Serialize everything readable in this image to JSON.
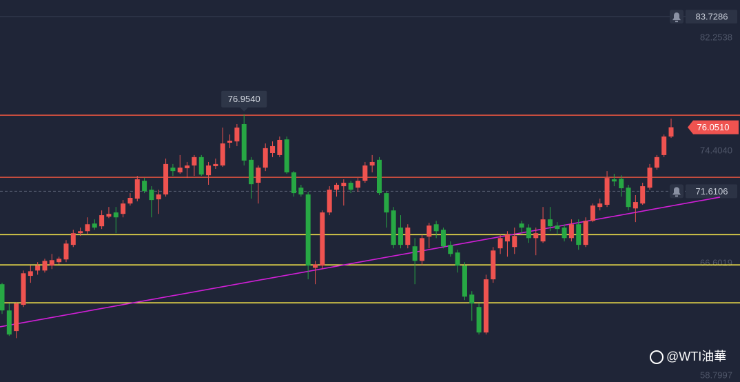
{
  "chart_data": {
    "type": "candlestick",
    "ylim": [
      58.375,
      84.882
    ],
    "yticks": [
      82.2538,
      {
        "value": 74.404,
        "label": "74.4040"
      },
      66.6019,
      58.7997
    ],
    "up_color": "#ef5350",
    "down_color": "#27a844",
    "series": {
      "open": [
        65.16,
        63.34,
        61.91,
        63.73,
        65.74,
        66.11,
        66.11,
        66.45,
        66.69,
        66.88,
        67.89,
        68.7,
        68.84,
        69.37,
        69.18,
        69.85,
        70.14,
        70.04,
        70.76,
        71.1,
        72.34,
        71.72,
        71.05,
        71.39,
        73.25,
        72.92,
        73.21,
        73.4,
        73.98,
        72.72,
        73.35,
        73.4,
        74.98,
        75.07,
        76.27,
        73.79,
        72.2,
        73.25,
        74.26,
        74.12,
        75.21,
        72.92,
        71.86,
        71.39,
        66.3,
        66.45,
        70.14,
        71.72,
        71.96,
        72.2,
        71.86,
        72.34,
        73.4,
        73.79,
        71.48,
        70.28,
        69.09,
        67.89,
        67.79,
        66.78,
        68.46,
        69.32,
        68.94,
        67.89,
        67.36,
        66.45,
        64.44,
        63.58,
        61.81,
        65.5,
        67.65,
        68.13,
        67.74,
        69.37,
        69.09,
        68.36,
        68.13,
        69.66,
        69.23,
        69.09,
        68.36,
        69.32,
        67.89,
        69.56,
        70.52,
        70.67,
        72.44,
        72.48,
        71.86,
        70.42,
        70.76,
        71.86,
        73.25,
        74.12,
        75.41
      ],
      "high": [
        65.26,
        63.82,
        63.92,
        66.11,
        66.45,
        66.69,
        66.93,
        67.26,
        67.07,
        68.22,
        68.94,
        69.09,
        69.8,
        69.66,
        70.28,
        70.52,
        70.52,
        71.0,
        71.48,
        72.68,
        72.53,
        71.96,
        71.72,
        73.88,
        73.5,
        74.12,
        73.64,
        74.12,
        74.12,
        73.64,
        73.88,
        76.03,
        75.55,
        76.27,
        76.954,
        73.98,
        73.4,
        74.93,
        75.07,
        75.41,
        75.41,
        73.01,
        72.06,
        71.58,
        66.78,
        70.28,
        71.96,
        72.2,
        72.44,
        72.34,
        72.53,
        73.64,
        74.12,
        73.98,
        71.58,
        70.52,
        69.95,
        69.32,
        68.36,
        68.6,
        69.42,
        69.56,
        69.09,
        68.13,
        67.55,
        66.69,
        64.68,
        63.82,
        65.82,
        67.74,
        68.6,
        68.84,
        69.09,
        69.56,
        69.32,
        69.09,
        70.52,
        70.52,
        69.47,
        69.32,
        69.66,
        69.66,
        69.8,
        70.76,
        71.1,
        73.01,
        72.82,
        72.72,
        72.06,
        71.34,
        72.2,
        73.5,
        74.12,
        75.55,
        76.65
      ],
      "low": [
        63.1,
        61.57,
        61.42,
        63.58,
        65.26,
        65.82,
        65.97,
        66.21,
        66.54,
        66.69,
        67.74,
        68.51,
        68.6,
        68.94,
        68.99,
        69.75,
        68.7,
        69.8,
        70.62,
        70.91,
        71.48,
        69.8,
        70.04,
        71.24,
        72.68,
        72.82,
        72.53,
        72.68,
        72.68,
        72.06,
        73.16,
        73.3,
        74.6,
        74.74,
        73.4,
        71.1,
        70.76,
        73.01,
        73.98,
        73.98,
        72.82,
        71.24,
        71.24,
        65.5,
        65.16,
        66.21,
        69.95,
        71.24,
        70.62,
        71.48,
        71.58,
        72.2,
        72.92,
        71.34,
        69.09,
        67.65,
        67.65,
        67.65,
        65.16,
        66.45,
        67.65,
        68.36,
        67.65,
        67.07,
        65.97,
        64.06,
        62.62,
        61.67,
        61.67,
        65.26,
        67.26,
        67.07,
        67.26,
        68.7,
        68.03,
        67.17,
        68.03,
        68.84,
        68.6,
        68.13,
        68.13,
        67.55,
        67.74,
        69.47,
        70.28,
        70.52,
        71.96,
        71.24,
        70.28,
        69.47,
        70.67,
        71.72,
        73.11,
        73.98,
        75.31
      ],
      "close": [
        63.34,
        61.67,
        63.82,
        65.92,
        66.06,
        66.45,
        66.78,
        66.83,
        66.93,
        67.98,
        68.7,
        68.84,
        69.32,
        69.09,
        69.95,
        70.04,
        69.8,
        70.76,
        71.15,
        72.44,
        71.62,
        71.0,
        71.39,
        73.5,
        73.01,
        73.25,
        73.4,
        73.98,
        72.77,
        73.4,
        73.5,
        74.93,
        75.12,
        76.03,
        73.74,
        72.1,
        73.25,
        74.6,
        74.74,
        75.17,
        72.92,
        71.48,
        71.39,
        66.45,
        66.54,
        70.14,
        71.72,
        72.06,
        72.2,
        71.72,
        72.34,
        73.4,
        73.64,
        71.48,
        70.14,
        67.89,
        67.89,
        69.09,
        66.78,
        68.36,
        69.23,
        68.84,
        67.79,
        67.26,
        66.45,
        64.3,
        63.82,
        61.81,
        65.5,
        67.5,
        68.36,
        68.6,
        68.51,
        69.09,
        68.36,
        68.7,
        69.66,
        69.18,
        68.99,
        68.36,
        69.32,
        67.89,
        69.56,
        70.62,
        70.76,
        72.53,
        72.29,
        71.82,
        70.52,
        70.86,
        71.96,
        73.25,
        73.98,
        75.41,
        76.051
      ]
    },
    "levels": [
      {
        "value": 76.89,
        "color": "#e0533f"
      },
      {
        "value": 72.58,
        "color": "#e0533f"
      },
      {
        "value": 68.6,
        "color": "#f2e24a"
      },
      {
        "value": 66.5,
        "color": "#f2e24a"
      },
      {
        "value": 63.87,
        "color": "#f2e24a"
      }
    ],
    "trendline": {
      "values": [
        62.23,
        70.59
      ],
      "color": "#d21fd8"
    },
    "alerts": [
      83.7286,
      71.6106
    ],
    "last_price": {
      "value": 76.051,
      "label": "76.0510",
      "color": "#ef5350"
    },
    "max_annotation": {
      "value": 76.954,
      "label": "76.9540"
    },
    "watermark": "@WTI油華"
  }
}
